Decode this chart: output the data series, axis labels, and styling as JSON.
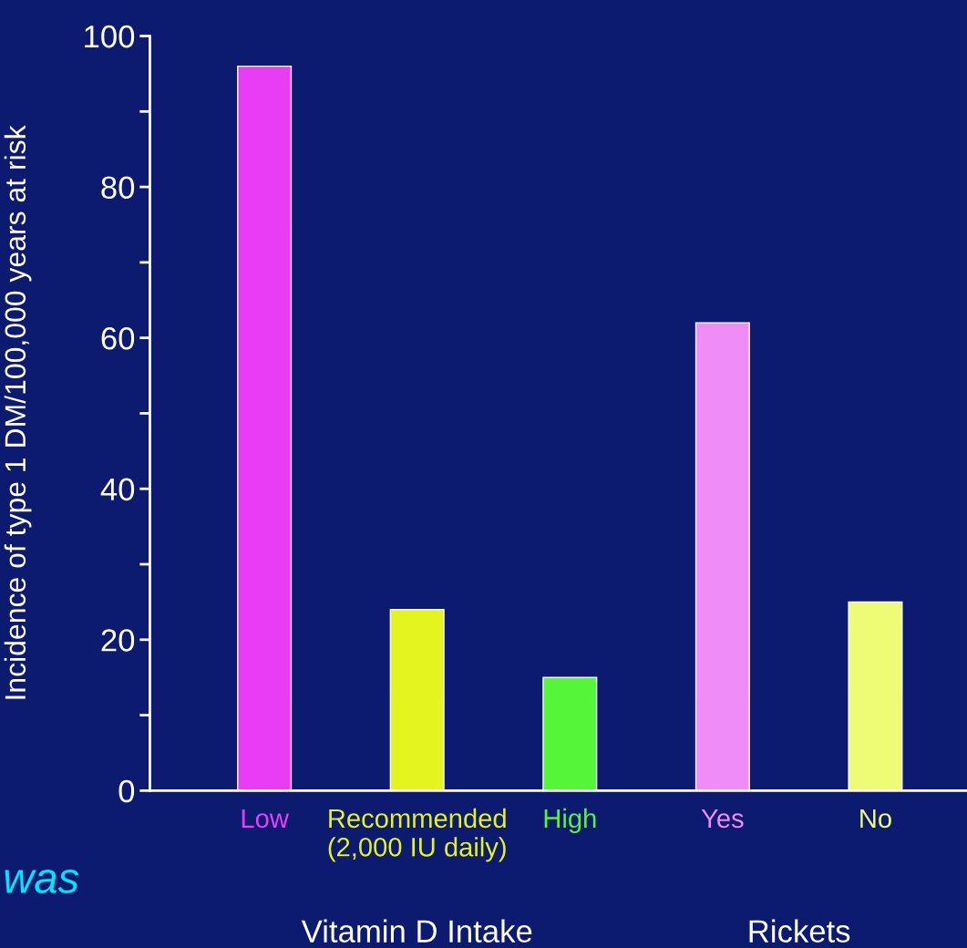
{
  "chart_data": {
    "type": "bar",
    "ylabel": "Incidence of type 1 DM/100,000 years at risk",
    "categories": [
      "Low",
      "Recommended\n(2,000 IU daily)",
      "High",
      "Yes",
      "No"
    ],
    "values": [
      96,
      24,
      15,
      62,
      25
    ],
    "colors": [
      "#e83cf5",
      "#e4f41f",
      "#55f53a",
      "#f08cf7",
      "#eefb75"
    ],
    "ylim": [
      0,
      100
    ],
    "yticks": [
      0,
      {
        "value": 10,
        "label": null
      },
      20,
      {
        "value": 30,
        "label": null
      },
      40,
      {
        "value": 50,
        "label": null
      },
      60,
      {
        "value": 70,
        "label": null
      },
      80,
      {
        "value": 90,
        "label": null
      },
      100
    ],
    "grid": false,
    "annotations": [
      "Vitamin D Intake",
      "Rickets",
      "was"
    ]
  }
}
